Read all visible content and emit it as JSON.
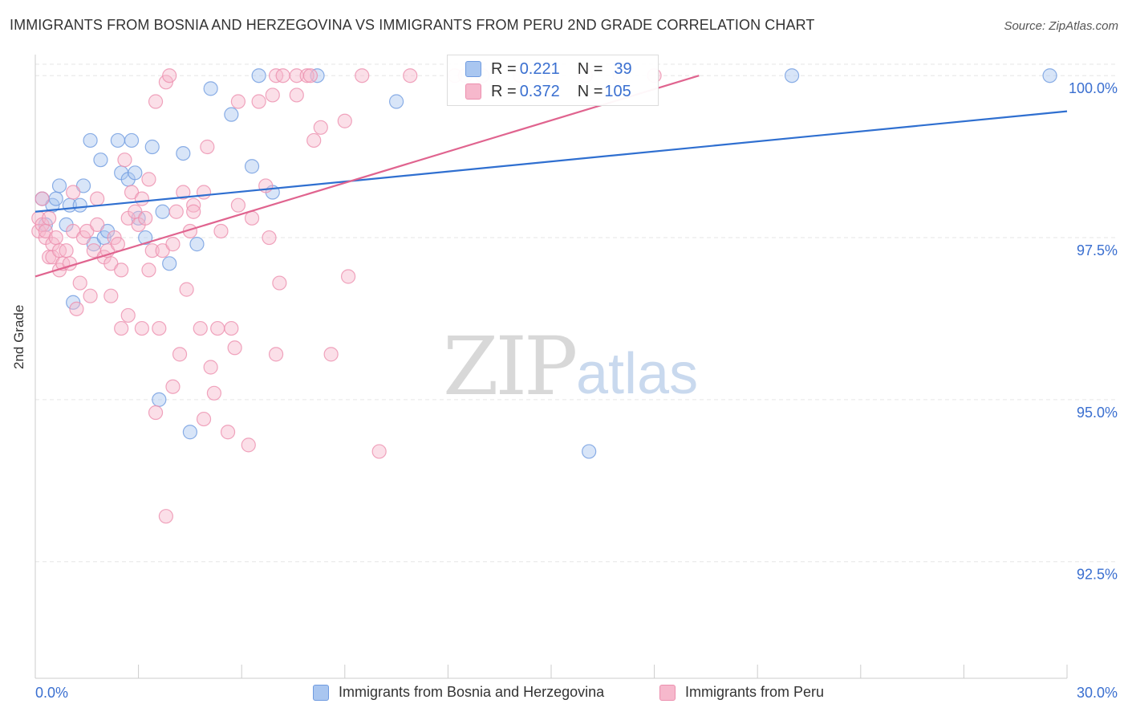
{
  "title": "IMMIGRANTS FROM BOSNIA AND HERZEGOVINA VS IMMIGRANTS FROM PERU 2ND GRADE CORRELATION CHART",
  "source": "Source: ZipAtlas.com",
  "watermark": {
    "zip": "ZIP",
    "atlas": "atlas"
  },
  "stats": [
    {
      "r_label": "R = ",
      "r_value": "0.221",
      "n_label": "N = ",
      "n_value": "39"
    },
    {
      "r_label": "R = ",
      "r_value": "0.372",
      "n_label": "N = ",
      "n_value": "105"
    }
  ],
  "colors": {
    "blue_fill": "#a9c6f0",
    "blue_stroke": "#6f9be0",
    "blue_line": "#2f6fd0",
    "pink_fill": "#f6b8cc",
    "pink_stroke": "#ec8fae",
    "pink_line": "#e0648f",
    "tick_label": "#3a6fd0",
    "grid": "#e6e6e6"
  },
  "chart_data": {
    "type": "scatter",
    "title": "IMMIGRANTS FROM BOSNIA AND HERZEGOVINA VS IMMIGRANTS FROM PERU 2ND GRADE CORRELATION CHART",
    "xlabel": "",
    "ylabel": "2nd Grade",
    "xlim": [
      0,
      30
    ],
    "ylim": [
      90.7,
      100.3
    ],
    "x_tick_labels": [
      "0.0%",
      "30.0%"
    ],
    "y_ticks": [
      92.5,
      95.0,
      97.5,
      100.0
    ],
    "y_tick_labels": [
      "92.5%",
      "95.0%",
      "97.5%",
      "100.0%"
    ],
    "legend_position": "bottom",
    "series": [
      {
        "name": "Immigrants from Bosnia and Herzegovina",
        "color": "blue",
        "trend": {
          "x0": 0,
          "y0": 97.9,
          "x1": 30,
          "y1": 99.45
        },
        "points": [
          [
            0.2,
            98.1
          ],
          [
            0.3,
            97.7
          ],
          [
            0.5,
            98.0
          ],
          [
            0.6,
            98.1
          ],
          [
            0.7,
            98.3
          ],
          [
            0.9,
            97.7
          ],
          [
            1.0,
            98.0
          ],
          [
            1.1,
            96.5
          ],
          [
            1.3,
            98.0
          ],
          [
            1.4,
            98.3
          ],
          [
            1.6,
            99.0
          ],
          [
            1.7,
            97.4
          ],
          [
            1.9,
            98.7
          ],
          [
            2.0,
            97.5
          ],
          [
            2.1,
            97.6
          ],
          [
            2.4,
            99.0
          ],
          [
            2.5,
            98.5
          ],
          [
            2.7,
            98.4
          ],
          [
            2.8,
            99.0
          ],
          [
            2.9,
            98.5
          ],
          [
            3.0,
            97.8
          ],
          [
            3.2,
            97.5
          ],
          [
            3.4,
            98.9
          ],
          [
            3.6,
            95.0
          ],
          [
            3.7,
            97.9
          ],
          [
            3.9,
            97.1
          ],
          [
            4.3,
            98.8
          ],
          [
            4.5,
            94.5
          ],
          [
            4.7,
            97.4
          ],
          [
            5.1,
            99.8
          ],
          [
            5.7,
            99.4
          ],
          [
            6.3,
            98.6
          ],
          [
            6.5,
            100.0
          ],
          [
            6.9,
            98.2
          ],
          [
            8.2,
            100.0
          ],
          [
            10.5,
            99.6
          ],
          [
            16.1,
            94.2
          ],
          [
            22.0,
            100.0
          ],
          [
            29.5,
            100.0
          ]
        ]
      },
      {
        "name": "Immigrants from Peru",
        "color": "pink",
        "trend": {
          "x0": 0,
          "y0": 96.9,
          "x1": 19.3,
          "y1": 100.0
        },
        "points": [
          [
            0.1,
            97.8
          ],
          [
            0.1,
            97.6
          ],
          [
            0.2,
            97.7
          ],
          [
            0.2,
            98.1
          ],
          [
            0.3,
            97.5
          ],
          [
            0.3,
            97.6
          ],
          [
            0.4,
            97.2
          ],
          [
            0.4,
            97.8
          ],
          [
            0.5,
            97.2
          ],
          [
            0.5,
            97.4
          ],
          [
            0.6,
            97.5
          ],
          [
            0.7,
            97.3
          ],
          [
            0.7,
            97.0
          ],
          [
            0.8,
            97.1
          ],
          [
            0.9,
            97.3
          ],
          [
            1.0,
            97.1
          ],
          [
            1.1,
            97.6
          ],
          [
            1.1,
            98.2
          ],
          [
            1.2,
            96.4
          ],
          [
            1.3,
            96.8
          ],
          [
            1.4,
            97.5
          ],
          [
            1.5,
            97.6
          ],
          [
            1.6,
            96.6
          ],
          [
            1.7,
            97.3
          ],
          [
            1.8,
            97.7
          ],
          [
            1.8,
            98.1
          ],
          [
            2.0,
            97.2
          ],
          [
            2.1,
            97.3
          ],
          [
            2.2,
            97.1
          ],
          [
            2.2,
            96.6
          ],
          [
            2.3,
            97.5
          ],
          [
            2.4,
            97.4
          ],
          [
            2.5,
            97.0
          ],
          [
            2.5,
            96.1
          ],
          [
            2.6,
            98.7
          ],
          [
            2.7,
            97.8
          ],
          [
            2.7,
            96.3
          ],
          [
            2.8,
            98.2
          ],
          [
            2.9,
            97.9
          ],
          [
            3.0,
            97.7
          ],
          [
            3.1,
            98.1
          ],
          [
            3.1,
            96.1
          ],
          [
            3.2,
            97.8
          ],
          [
            3.3,
            97.0
          ],
          [
            3.3,
            98.4
          ],
          [
            3.4,
            97.3
          ],
          [
            3.5,
            94.8
          ],
          [
            3.5,
            99.6
          ],
          [
            3.6,
            96.1
          ],
          [
            3.7,
            97.3
          ],
          [
            3.8,
            93.2
          ],
          [
            3.8,
            99.9
          ],
          [
            3.9,
            100.0
          ],
          [
            4.0,
            95.2
          ],
          [
            4.0,
            97.4
          ],
          [
            4.1,
            97.9
          ],
          [
            4.2,
            95.7
          ],
          [
            4.3,
            98.2
          ],
          [
            4.4,
            96.7
          ],
          [
            4.5,
            97.6
          ],
          [
            4.6,
            98.0
          ],
          [
            4.6,
            97.9
          ],
          [
            4.8,
            96.1
          ],
          [
            4.9,
            98.2
          ],
          [
            4.9,
            94.7
          ],
          [
            5.0,
            98.9
          ],
          [
            5.1,
            95.5
          ],
          [
            5.2,
            95.1
          ],
          [
            5.3,
            96.1
          ],
          [
            5.4,
            97.6
          ],
          [
            5.6,
            94.5
          ],
          [
            5.7,
            96.1
          ],
          [
            5.8,
            95.8
          ],
          [
            5.9,
            98.0
          ],
          [
            5.9,
            99.6
          ],
          [
            6.2,
            94.3
          ],
          [
            6.3,
            97.8
          ],
          [
            6.5,
            99.6
          ],
          [
            6.7,
            98.3
          ],
          [
            6.8,
            97.5
          ],
          [
            6.9,
            99.7
          ],
          [
            7.0,
            95.7
          ],
          [
            7.1,
            96.8
          ],
          [
            7.0,
            100.0
          ],
          [
            7.2,
            100.0
          ],
          [
            7.6,
            100.0
          ],
          [
            7.6,
            99.7
          ],
          [
            7.9,
            100.0
          ],
          [
            8.0,
            100.0
          ],
          [
            8.1,
            99.0
          ],
          [
            8.3,
            99.2
          ],
          [
            8.6,
            95.7
          ],
          [
            9.0,
            99.3
          ],
          [
            9.1,
            96.9
          ],
          [
            9.5,
            100.0
          ],
          [
            10.0,
            94.2
          ],
          [
            10.9,
            100.0
          ],
          [
            12.2,
            100.0
          ],
          [
            12.5,
            100.0
          ],
          [
            13.0,
            100.0
          ],
          [
            14.1,
            100.0
          ],
          [
            15.0,
            100.0
          ],
          [
            16.0,
            100.0
          ],
          [
            17.0,
            100.0
          ],
          [
            18.0,
            100.0
          ]
        ]
      }
    ]
  },
  "legend": [
    {
      "label": "Immigrants from Bosnia and Herzegovina"
    },
    {
      "label": "Immigrants from Peru"
    }
  ]
}
